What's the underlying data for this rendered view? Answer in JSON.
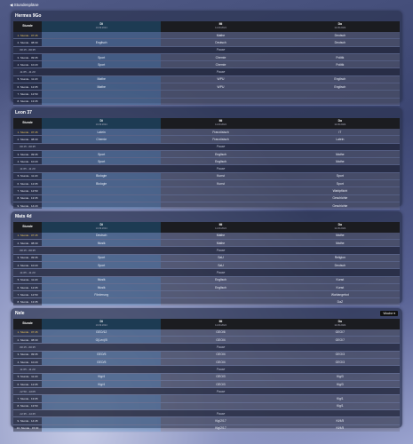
{
  "header": {
    "back": "◀ Stundenpläne"
  },
  "panels": [
    {
      "title": "Hermes 9Go",
      "columns": [
        {
          "day": "Di",
          "date": "10.09.2024"
        },
        {
          "day": "Mi",
          "date": "11.09.2024"
        },
        {
          "day": "Do",
          "date": "12.09.2024"
        }
      ],
      "corner": "Stunde",
      "rows": [
        {
          "label": "1. Stunde · 07:45",
          "cells": [
            null,
            "Mathe",
            "Deutsch"
          ]
        },
        {
          "label": "2. Stunde · 08:30",
          "cells": [
            "Englisch",
            "Deutsch",
            "Deutsch"
          ]
        },
        {
          "label": "09:15 - 09:35",
          "note": "Pause"
        },
        {
          "label": "3. Stunde · 09:35",
          "cells": [
            "Sport",
            "Chemie",
            "Politik"
          ]
        },
        {
          "label": "4. Stunde · 10:20",
          "cells": [
            "Sport",
            "Chemie",
            "Politik"
          ]
        },
        {
          "label": "11:05 - 11:20",
          "note": "Pause"
        },
        {
          "label": "5. Stunde · 11:20",
          "cells": [
            "Mathe",
            "WPU",
            "Englisch"
          ]
        },
        {
          "label": "6. Stunde · 12:05",
          "cells": [
            "Mathe",
            "WPU",
            "Englisch"
          ]
        },
        {
          "label": "7. Stunde · 12:50",
          "cells": [
            null,
            null,
            null
          ]
        },
        {
          "label": "8. Stunde · 13:35",
          "cells": [
            null,
            null,
            null
          ]
        }
      ]
    },
    {
      "title": "Leon 37",
      "columns": [
        {
          "day": "Di",
          "date": "10.09.2024"
        },
        {
          "day": "Mi",
          "date": "11.09.2024"
        },
        {
          "day": "Do",
          "date": "12.09.2024"
        }
      ],
      "corner": "Stunde",
      "rows": [
        {
          "label": "1. Stunde · 07:45",
          "cells": [
            "Latein",
            "Französisch",
            "IT"
          ]
        },
        {
          "label": "2. Stunde · 08:30",
          "cells": [
            "Chemie",
            "Französisch",
            "Latein"
          ]
        },
        {
          "label": "09:15 - 09:35",
          "note": "Pause"
        },
        {
          "label": "3. Stunde · 09:35",
          "cells": [
            "Sport",
            "Englisch",
            "Mathe"
          ]
        },
        {
          "label": "4. Stunde · 10:20",
          "cells": [
            "Sport",
            "Englisch",
            "Mathe"
          ]
        },
        {
          "label": "11:05 - 11:20",
          "note": "Pause"
        },
        {
          "label": "5. Stunde · 11:20",
          "cells": [
            "Biologie",
            "Kunst",
            "Sport"
          ]
        },
        {
          "label": "6. Stunde · 12:05",
          "cells": [
            "Biologie",
            "Kunst",
            "Sport"
          ]
        },
        {
          "label": "7. Stunde · 12:50",
          "cells": [
            null,
            null,
            "Wahlpflicht"
          ]
        },
        {
          "label": "8. Stunde · 13:35",
          "cells": [
            null,
            null,
            "Geschichte"
          ]
        },
        {
          "label": "9. Stunde · 14:20",
          "cells": [
            null,
            null,
            "Geschichte"
          ]
        }
      ]
    },
    {
      "title": "Mats 4d",
      "columns": [
        {
          "day": "Di",
          "date": "10.09.2024"
        },
        {
          "day": "Mi",
          "date": "11.09.2024"
        },
        {
          "day": "Do",
          "date": "12.09.2024"
        }
      ],
      "corner": "Stunde",
      "rows": [
        {
          "label": "1. Stunde · 07:45",
          "cells": [
            "Deutsch",
            "Mathe",
            "Mathe"
          ]
        },
        {
          "label": "2. Stunde · 08:30",
          "cells": [
            "Musik",
            "Mathe",
            "Mathe"
          ]
        },
        {
          "label": "09:15 - 09:35",
          "note": "Pause"
        },
        {
          "label": "3. Stunde · 09:35",
          "cells": [
            "Sport",
            "SaU",
            "Religion"
          ]
        },
        {
          "label": "4. Stunde · 10:20",
          "cells": [
            "Sport",
            "SaU",
            "Deutsch"
          ]
        },
        {
          "label": "11:05 - 11:20",
          "note": "Pause"
        },
        {
          "label": "5. Stunde · 11:20",
          "cells": [
            "Musik",
            "Englisch",
            "Kunst"
          ]
        },
        {
          "label": "6. Stunde · 12:05",
          "cells": [
            "Musik",
            "Englisch",
            "Kunst"
          ]
        },
        {
          "label": "7. Stunde · 12:50",
          "cells": [
            "Förderung",
            null,
            "Wahlangebot"
          ]
        },
        {
          "label": "8. Stunde · 13:35",
          "cells": [
            null,
            null,
            "DaZ"
          ]
        }
      ]
    },
    {
      "title": "Nele",
      "button": "Woche ▾",
      "columns": [
        {
          "day": "Di",
          "date": "10.09.2024"
        },
        {
          "day": "Mi",
          "date": "11.09.2024"
        },
        {
          "day": "Do",
          "date": "12.09.2024"
        }
      ],
      "corner": "Stunde",
      "rows": [
        {
          "label": "1. Stunde · 07:45",
          "cells": [
            "GEO/12",
            "GEO/6",
            "GEO/7"
          ]
        },
        {
          "label": "2. Stunde · 08:30",
          "cells": [
            "G(Lex)/5",
            "GEO/4",
            "GEO/7"
          ]
        },
        {
          "label": "09:15 - 09:35",
          "note": "Pause"
        },
        {
          "label": "3. Stunde · 09:35",
          "cells": [
            "GEO/5",
            "GEO/4",
            "GEO/3"
          ]
        },
        {
          "label": "4. Stunde · 10:20",
          "cells": [
            "GEO/5",
            "GEO/4",
            "GEO/3"
          ]
        },
        {
          "label": "11:05 - 11:20",
          "note": "Pause"
        },
        {
          "label": "5. Stunde · 11:20",
          "cells": [
            "Kig/4",
            "GEO/3",
            "Kig/3"
          ]
        },
        {
          "label": "6. Stunde · 12:05",
          "cells": [
            "Kig/4",
            "GEO/3",
            "Kig/3"
          ]
        },
        {
          "label": "12:50 - 13:05",
          "note": "Pause"
        },
        {
          "label": "7. Stunde · 13:05",
          "cells": [
            null,
            null,
            "Kig/1"
          ]
        },
        {
          "label": "8. Stunde · 13:50",
          "cells": [
            null,
            null,
            "Kig/1"
          ]
        },
        {
          "label": "14:35 - 14:45",
          "note": "Pause"
        },
        {
          "label": "9. Stunde · 14:45",
          "cells": [
            null,
            "Kig/2/17",
            "Kl/4/5"
          ]
        },
        {
          "label": "10. Stunde · 15:30",
          "cells": [
            null,
            "Kig/2/17",
            "Kl/4/5"
          ]
        }
      ]
    }
  ]
}
